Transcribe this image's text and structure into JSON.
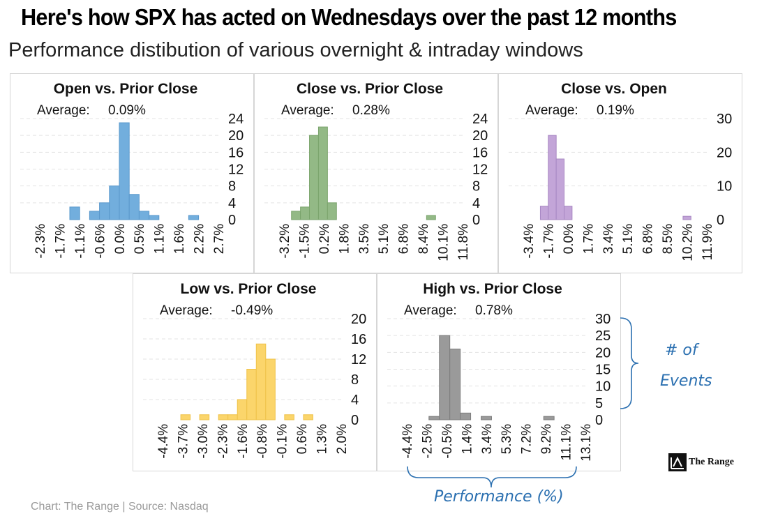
{
  "header": {
    "title": "Here's how SPX has acted on Wednesdays over the past 12 months",
    "subtitle": "Performance distibution of various overnight & intraday windows"
  },
  "footer": {
    "source": "Chart: The Range | Source: Nasdaq"
  },
  "logo": {
    "text": "The Range",
    "icon": "chart-peak-icon"
  },
  "annotations": {
    "y_label_line1": "# of",
    "y_label_line2": "Events",
    "x_label": "Performance (%)"
  },
  "chart_data": [
    {
      "type": "bar",
      "title": "Open vs. Prior Close",
      "average_label": "Average:",
      "average_value": "0.09%",
      "color": "#72aedd",
      "stroke": "#5a98cc",
      "ylim": [
        0,
        24
      ],
      "yticks": [
        "24",
        "20",
        "16",
        "12",
        "8",
        "4",
        "0"
      ],
      "xticks": [
        "-2.3%",
        "-1.7%",
        "-1.1%",
        "-0.6%",
        "0.0%",
        "0.5%",
        "1.1%",
        "1.6%",
        "2.2%",
        "2.7%"
      ],
      "values": [
        0,
        0,
        0,
        0,
        0,
        3,
        0,
        2,
        4,
        8,
        23,
        6,
        2,
        1,
        0,
        0,
        0,
        1,
        0,
        0
      ],
      "grid": true
    },
    {
      "type": "bar",
      "title": "Close vs. Prior Close",
      "average_label": "Average:",
      "average_value": "0.28%",
      "color": "#93b986",
      "stroke": "#7aa46c",
      "ylim": [
        0,
        24
      ],
      "yticks": [
        "24",
        "20",
        "16",
        "12",
        "8",
        "4",
        "0"
      ],
      "xticks": [
        "-3.2%",
        "-1.5%",
        "0.2%",
        "1.8%",
        "3.5%",
        "5.1%",
        "6.8%",
        "8.4%",
        "10.1%",
        "11.8%"
      ],
      "values": [
        0,
        0,
        0,
        2,
        3,
        20,
        22,
        4,
        0,
        0,
        0,
        0,
        0,
        0,
        0,
        0,
        0,
        0,
        1,
        0,
        0,
        0
      ],
      "grid": true
    },
    {
      "type": "bar",
      "title": "Close vs. Open",
      "average_label": "Average:",
      "average_value": "0.19%",
      "color": "#c3a5d8",
      "stroke": "#a787c2",
      "ylim": [
        0,
        30
      ],
      "yticks": [
        "30",
        "20",
        "10",
        "0"
      ],
      "xticks": [
        "-3.4%",
        "-1.7%",
        "0.0%",
        "1.7%",
        "3.4%",
        "5.1%",
        "6.8%",
        "8.5%",
        "10.2%",
        "11.9%"
      ],
      "values": [
        0,
        0,
        0,
        0,
        4,
        25,
        18,
        4,
        0,
        0,
        0,
        0,
        0,
        0,
        0,
        0,
        0,
        0,
        0,
        0,
        0,
        0,
        1,
        0,
        0
      ],
      "grid": true
    },
    {
      "type": "bar",
      "title": "Low vs. Prior Close",
      "average_label": "Average:",
      "average_value": "-0.49%",
      "color": "#fbd56b",
      "stroke": "#efc24a",
      "ylim": [
        0,
        20
      ],
      "yticks": [
        "20",
        "16",
        "12",
        "8",
        "4",
        "0"
      ],
      "xticks": [
        "-4.4%",
        "-3.7%",
        "-3.0%",
        "-2.3%",
        "-1.6%",
        "-0.8%",
        "-0.1%",
        "0.6%",
        "1.3%",
        "2.0%"
      ],
      "values": [
        0,
        0,
        0,
        0,
        1,
        0,
        1,
        0,
        1,
        1,
        4,
        10,
        15,
        12,
        0,
        1,
        0,
        1,
        0,
        0,
        0
      ],
      "grid": true
    },
    {
      "type": "bar",
      "title": "High vs. Prior Close",
      "average_label": "Average:",
      "average_value": "0.78%",
      "color": "#9a9a9a",
      "stroke": "#7d7d7d",
      "ylim": [
        0,
        30
      ],
      "yticks": [
        "30",
        "25",
        "20",
        "15",
        "10",
        "5",
        "0"
      ],
      "xticks": [
        "-4.4%",
        "-2.5%",
        "-0.5%",
        "1.4%",
        "3.4%",
        "5.3%",
        "7.2%",
        "9.2%",
        "11.1%",
        "13.1%"
      ],
      "values": [
        0,
        0,
        0,
        0,
        1,
        25,
        21,
        2,
        0,
        1,
        0,
        0,
        0,
        0,
        0,
        1,
        0,
        0,
        0
      ],
      "grid": true
    }
  ]
}
